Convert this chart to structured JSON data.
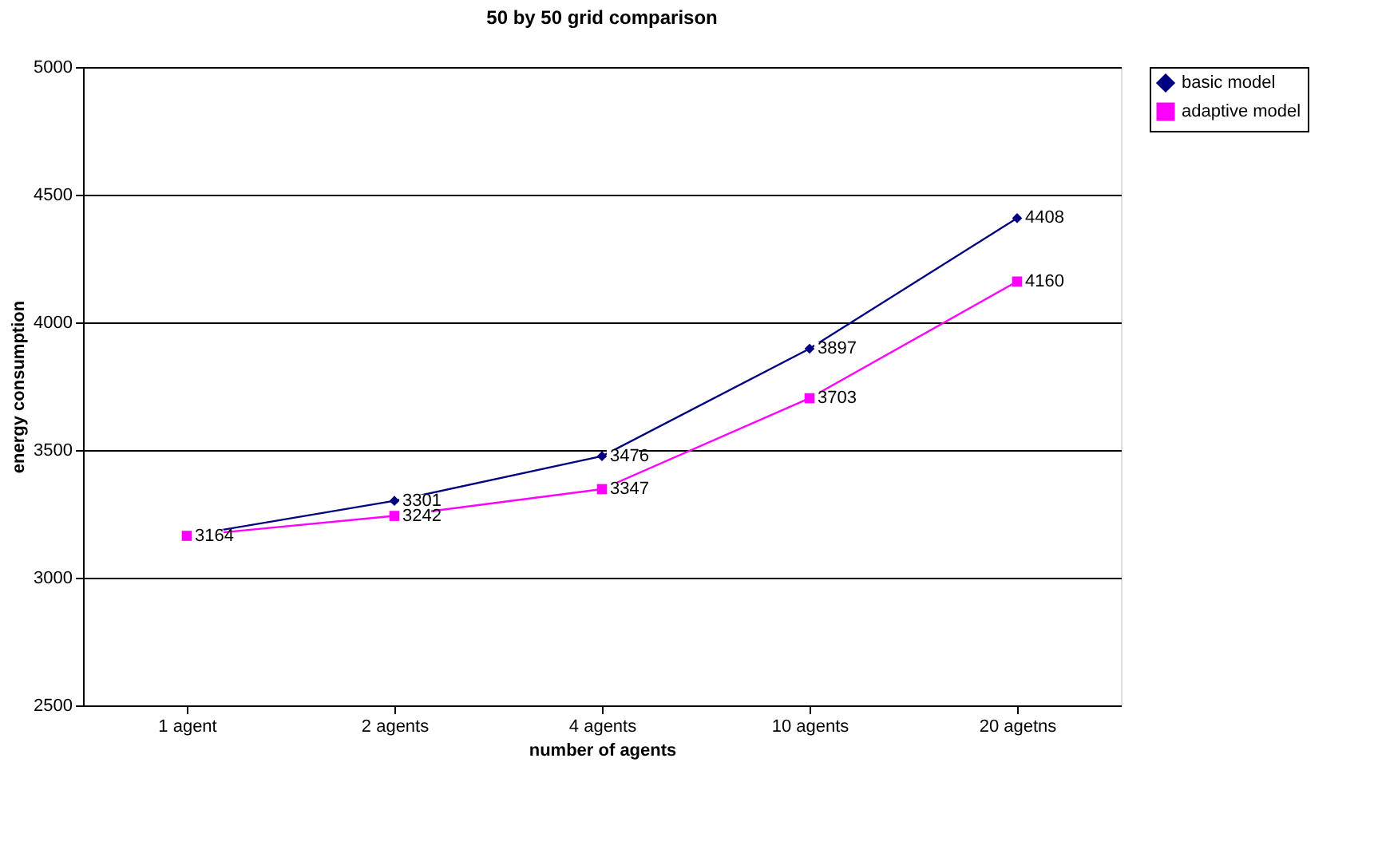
{
  "chart_data": {
    "type": "line",
    "title": "50 by 50 grid comparison",
    "xlabel": "number of agents",
    "ylabel": "energy consumption",
    "categories": [
      "1 agent",
      "2 agents",
      "4 agents",
      "10 agents",
      "20 agetns"
    ],
    "series": [
      {
        "name": "basic model",
        "color": "#000080",
        "marker": "diamond",
        "values": [
          3164,
          3301,
          3476,
          3897,
          4408
        ],
        "value_labels": [
          null,
          "3301",
          "3476",
          "3897",
          "4408"
        ]
      },
      {
        "name": "adaptive model",
        "color": "#ff00ff",
        "marker": "square",
        "values": [
          3164,
          3242,
          3347,
          3703,
          4160
        ],
        "value_labels": [
          "3164",
          "3242",
          "3347",
          "3703",
          "4160"
        ]
      }
    ],
    "ylim": [
      2500,
      5000
    ],
    "yticks": [
      2500,
      3000,
      3500,
      4000,
      4500,
      5000
    ],
    "grid": "y",
    "legend": "right",
    "line_style": "solid"
  }
}
